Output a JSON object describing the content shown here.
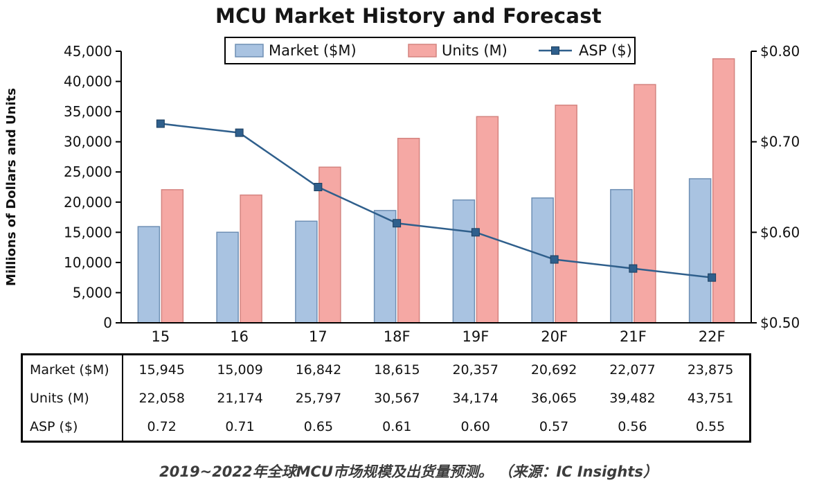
{
  "title": "MCU Market History and Forecast",
  "caption": "2019~2022年全球MCU市场规模及出货量预测。 （来源：IC Insights）",
  "chart_data": {
    "type": "bar+line",
    "categories": [
      "15",
      "16",
      "17",
      "18F",
      "19F",
      "20F",
      "21F",
      "22F"
    ],
    "series": [
      {
        "name": "Market ($M)",
        "type": "bar",
        "axis": "left",
        "color": "#a9c3e1",
        "border": "#6e8fb4",
        "values": [
          15945,
          15009,
          16842,
          18615,
          20357,
          20692,
          22077,
          23875
        ]
      },
      {
        "name": "Units (M)",
        "type": "bar",
        "axis": "left",
        "color": "#f5a8a4",
        "border": "#d4837f",
        "values": [
          22058,
          21174,
          25797,
          30567,
          34174,
          36065,
          39482,
          43751
        ]
      },
      {
        "name": "ASP ($)",
        "type": "line",
        "axis": "right",
        "color": "#2f5f8c",
        "marker_border": "#1c3e5e",
        "values": [
          0.72,
          0.71,
          0.65,
          0.61,
          0.6,
          0.57,
          0.56,
          0.55
        ]
      }
    ],
    "ylabel_left": "Millions of Dollars and Units",
    "ylim_left": [
      0,
      45000
    ],
    "ytick_step_left": 5000,
    "ylim_right": [
      0.5,
      0.8
    ],
    "yticks_right": [
      "$0.80",
      "$0.70",
      "$0.60",
      "$0.50"
    ],
    "legend_position": "top",
    "grid": false
  },
  "table": {
    "row_labels": [
      "Market ($M)",
      "Units (M)",
      "ASP ($)"
    ],
    "values": [
      [
        "15,945",
        "15,009",
        "16,842",
        "18,615",
        "20,357",
        "20,692",
        "22,077",
        "23,875"
      ],
      [
        "22,058",
        "21,174",
        "25,797",
        "30,567",
        "34,174",
        "36,065",
        "39,482",
        "43,751"
      ],
      [
        "0.72",
        "0.71",
        "0.65",
        "0.61",
        "0.60",
        "0.57",
        "0.56",
        "0.55"
      ]
    ]
  }
}
